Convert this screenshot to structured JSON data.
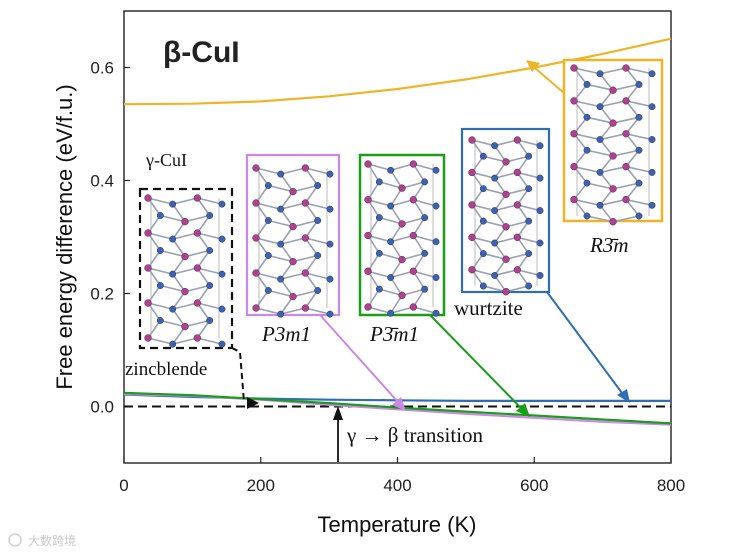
{
  "chart_data": {
    "type": "line",
    "title": "β-CuI",
    "xlabel": "Temperature (K)",
    "ylabel": "Free energy difference (eV/f.u.)",
    "xlim": [
      0,
      800
    ],
    "ylim": [
      -0.1,
      0.7
    ],
    "xticks": [
      0,
      200,
      400,
      600,
      800
    ],
    "yticks": [
      0.0,
      0.2,
      0.4,
      0.6
    ],
    "ytick_labels": [
      "0.0",
      "0.2",
      "0.4",
      "0.6"
    ],
    "grid": false,
    "series": [
      {
        "name": "zincblende",
        "color": "#111111",
        "dash": "dashed",
        "x": [
          0,
          800
        ],
        "y": [
          0.0,
          0.0
        ]
      },
      {
        "name": "wurtzite",
        "color": "#2f6db5",
        "dash": "solid",
        "x": [
          0,
          100,
          200,
          300,
          400,
          500,
          600,
          700,
          800
        ],
        "y": [
          0.021,
          0.017,
          0.014,
          0.012,
          0.011,
          0.01,
          0.01,
          0.01,
          0.01
        ]
      },
      {
        "name": "P3m1",
        "color": "#cc88e8",
        "dash": "solid",
        "x": [
          0,
          100,
          200,
          300,
          400,
          500,
          600,
          700,
          800
        ],
        "y": [
          0.022,
          0.019,
          0.012,
          0.003,
          -0.005,
          -0.013,
          -0.02,
          -0.027,
          -0.032
        ]
      },
      {
        "name": "P3̄m1",
        "color": "#1a9e1a",
        "dash": "solid",
        "x": [
          0,
          100,
          200,
          300,
          400,
          500,
          600,
          700,
          800
        ],
        "y": [
          0.024,
          0.02,
          0.013,
          0.006,
          -0.002,
          -0.009,
          -0.016,
          -0.023,
          -0.03
        ]
      },
      {
        "name": "R3̄m",
        "color": "#f0b428",
        "dash": "solid",
        "x": [
          0,
          100,
          200,
          300,
          400,
          500,
          600,
          700,
          800
        ],
        "y": [
          0.535,
          0.536,
          0.54,
          0.549,
          0.562,
          0.579,
          0.6,
          0.624,
          0.651
        ]
      }
    ],
    "annotations": {
      "gamma_label": "γ-CuI",
      "transition_label": "γ → β transition",
      "transition_x": 313,
      "panels": [
        {
          "label": "zincblende",
          "color": "#111111"
        },
        {
          "label": "P3m1",
          "color": "#cc88e8"
        },
        {
          "label": "P3̄m1",
          "color": "#1a9e1a"
        },
        {
          "label": "wurtzite",
          "color": "#2f6db5"
        },
        {
          "label": "R3̄m",
          "color": "#f0b428"
        }
      ]
    }
  },
  "watermark": "大数跨境"
}
